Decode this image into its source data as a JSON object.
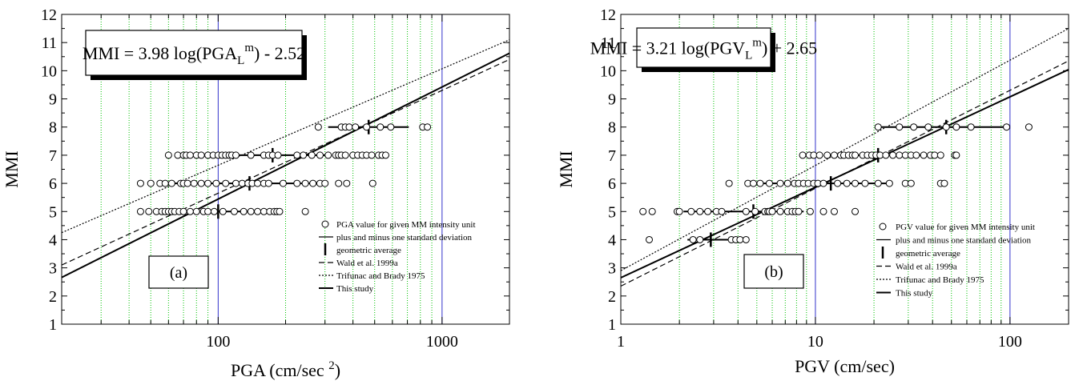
{
  "chart_data": [
    {
      "type": "scatter",
      "panel_label": "(a)",
      "equation": {
        "pre": "MMI = 3.98 log(PGA",
        "sub": "L",
        "sup": "m",
        "post": ") - 2.52"
      },
      "xlabel": {
        "text": "PGA (cm/sec ",
        "sup": "2",
        "post": ")"
      },
      "ylabel": "MMI",
      "x_scale": "log",
      "xlim": [
        20,
        2000
      ],
      "ylim": [
        1,
        12
      ],
      "x_ticks": [
        {
          "value": 100,
          "label": "100"
        },
        {
          "value": 1000,
          "label": "1000"
        }
      ],
      "y_ticks": [
        1,
        2,
        3,
        4,
        5,
        6,
        7,
        8,
        9,
        10,
        11,
        12
      ],
      "grid": "vertical dotted green lines at minor decades",
      "reference_lines_x": [
        100,
        1000
      ],
      "points": [
        {
          "mmi": 5,
          "x": [
            45,
            49,
            53,
            56,
            58,
            60,
            62,
            64,
            67,
            70,
            75,
            80,
            86,
            90,
            96,
            105,
            118,
            130,
            140,
            150,
            160,
            170,
            178,
            183,
            188,
            245
          ]
        },
        {
          "mmi": 6,
          "x": [
            45,
            50,
            55,
            58,
            62,
            68,
            70,
            73,
            78,
            84,
            90,
            98,
            108,
            120,
            128,
            136,
            142,
            150,
            160,
            168,
            195,
            225,
            245,
            265,
            285,
            300,
            345,
            375,
            490
          ]
        },
        {
          "mmi": 7,
          "x": [
            60,
            66,
            70,
            72,
            75,
            80,
            84,
            90,
            95,
            100,
            104,
            108,
            112,
            115,
            120,
            140,
            160,
            168,
            175,
            185,
            225,
            240,
            262,
            285,
            310,
            335,
            345,
            355,
            370,
            400,
            420,
            440,
            460,
            485,
            520,
            540,
            560
          ]
        },
        {
          "mmi": 8,
          "x": [
            280,
            355,
            370,
            385,
            410,
            460,
            530,
            590,
            820,
            860
          ]
        }
      ],
      "geometric_average": [
        {
          "mmi": 5,
          "x": 100,
          "range": [
            66,
            152
          ]
        },
        {
          "mmi": 6,
          "x": 138,
          "range": [
            58,
            310
          ]
        },
        {
          "mmi": 7,
          "x": 175,
          "range": [
            100,
            300
          ]
        },
        {
          "mmi": 8,
          "x": 470,
          "range": [
            310,
            710
          ]
        }
      ],
      "lines": [
        {
          "name": "Wald et al. 1999a",
          "style": "dashed",
          "points": [
            [
              20,
              3.1
            ],
            [
              2000,
              10.4
            ]
          ]
        },
        {
          "name": "Trifunac and Brady 1975",
          "style": "dotted",
          "points": [
            [
              20,
              4.25
            ],
            [
              2000,
              11.1
            ]
          ]
        },
        {
          "name": "This study",
          "style": "solid",
          "points": [
            [
              20,
              2.66
            ],
            [
              2000,
              10.62
            ]
          ]
        }
      ],
      "legend": [
        {
          "symbol": "circle",
          "label": "PGA value for given MM intensity unit"
        },
        {
          "symbol": "hline",
          "label": "plus and minus one standard deviation"
        },
        {
          "symbol": "vbar",
          "label": "geometric average"
        },
        {
          "symbol": "dashed",
          "label": "Wald et al. 1999a"
        },
        {
          "symbol": "dotted",
          "label": "Trifunac and Brady 1975"
        },
        {
          "symbol": "solid",
          "label": "This study"
        }
      ],
      "legend_position": "bottom-right"
    },
    {
      "type": "scatter",
      "panel_label": "(b)",
      "equation": {
        "pre": "MMI = 3.21 log(PGV",
        "sub": "L",
        "sup": "m",
        "post": ") + 2.65"
      },
      "xlabel": {
        "text": "PGV (cm/sec)",
        "sup": "",
        "post": ""
      },
      "ylabel": "MMI",
      "x_scale": "log",
      "xlim": [
        1,
        200
      ],
      "ylim": [
        1,
        12
      ],
      "x_ticks": [
        {
          "value": 1,
          "label": "1"
        },
        {
          "value": 10,
          "label": "10"
        },
        {
          "value": 100,
          "label": "100"
        }
      ],
      "y_ticks": [
        1,
        2,
        3,
        4,
        5,
        6,
        7,
        8,
        9,
        10,
        11,
        12
      ],
      "grid": "vertical dotted green lines at minor decades",
      "reference_lines_x": [
        10,
        100
      ],
      "points": [
        {
          "mmi": 4,
          "x": [
            1.4,
            2.35,
            2.55,
            3.7,
            3.9,
            4.1,
            4.4
          ]
        },
        {
          "mmi": 5,
          "x": [
            1.3,
            1.45,
            1.95,
            2.0,
            2.3,
            2.55,
            2.8,
            3.1,
            3.3,
            4.4,
            4.9,
            5.5,
            5.7,
            5.8,
            6.0,
            6.6,
            7.2,
            7.6,
            7.9,
            8.2,
            9.4,
            11,
            12.5,
            16
          ]
        },
        {
          "mmi": 6,
          "x": [
            3.6,
            4.5,
            4.8,
            5.2,
            5.8,
            6.6,
            7.2,
            7.8,
            8.2,
            8.7,
            9.2,
            9.8,
            10.3,
            11,
            13,
            14.5,
            16,
            18,
            21,
            24,
            29,
            31,
            44,
            46
          ]
        },
        {
          "mmi": 7,
          "x": [
            8.6,
            9.3,
            9.8,
            10.5,
            11.5,
            12.5,
            13.5,
            14,
            14.8,
            15.5,
            16,
            17.5,
            18.5,
            19.5,
            20.5,
            21.5,
            23,
            25,
            27,
            29,
            31,
            33,
            36,
            39,
            41,
            44,
            52,
            53
          ]
        },
        {
          "mmi": 8,
          "x": [
            21,
            27,
            32,
            38,
            47,
            53,
            63,
            96,
            125
          ]
        }
      ],
      "geometric_average": [
        {
          "mmi": 4,
          "x": 2.9,
          "range": [
            2.2,
            3.9
          ]
        },
        {
          "mmi": 5,
          "x": 4.8,
          "range": [
            2.1,
            8.7
          ]
        },
        {
          "mmi": 6,
          "x": 12,
          "range": [
            5.0,
            25
          ]
        },
        {
          "mmi": 7,
          "x": 21,
          "range": [
            13,
            35
          ]
        },
        {
          "mmi": 8,
          "x": 47,
          "range": [
            21,
            97
          ]
        }
      ],
      "lines": [
        {
          "name": "Wald et al. 1999a",
          "style": "dashed",
          "points": [
            [
              1,
              2.35
            ],
            [
              200,
              10.35
            ]
          ]
        },
        {
          "name": "Trifunac and Brady 1975",
          "style": "dotted",
          "points": [
            [
              1,
              2.9
            ],
            [
              200,
              11.5
            ]
          ]
        },
        {
          "name": "This study",
          "style": "solid",
          "points": [
            [
              1,
              2.65
            ],
            [
              200,
              10.04
            ]
          ]
        }
      ],
      "legend": [
        {
          "symbol": "circle",
          "label": "PGV value for given MM intensity unit"
        },
        {
          "symbol": "hline",
          "label": "plus and minus one standard deviation"
        },
        {
          "symbol": "vbar",
          "label": "geometric average"
        },
        {
          "symbol": "dashed",
          "label": "Wald et al. 1999a"
        },
        {
          "symbol": "dotted",
          "label": "Trifunac and Brady 1975"
        },
        {
          "symbol": "solid",
          "label": "This study"
        }
      ],
      "legend_position": "bottom-right"
    }
  ],
  "colors": {
    "grid": "#00c000",
    "reference_line": "#3333cc",
    "ink": "#000000"
  }
}
